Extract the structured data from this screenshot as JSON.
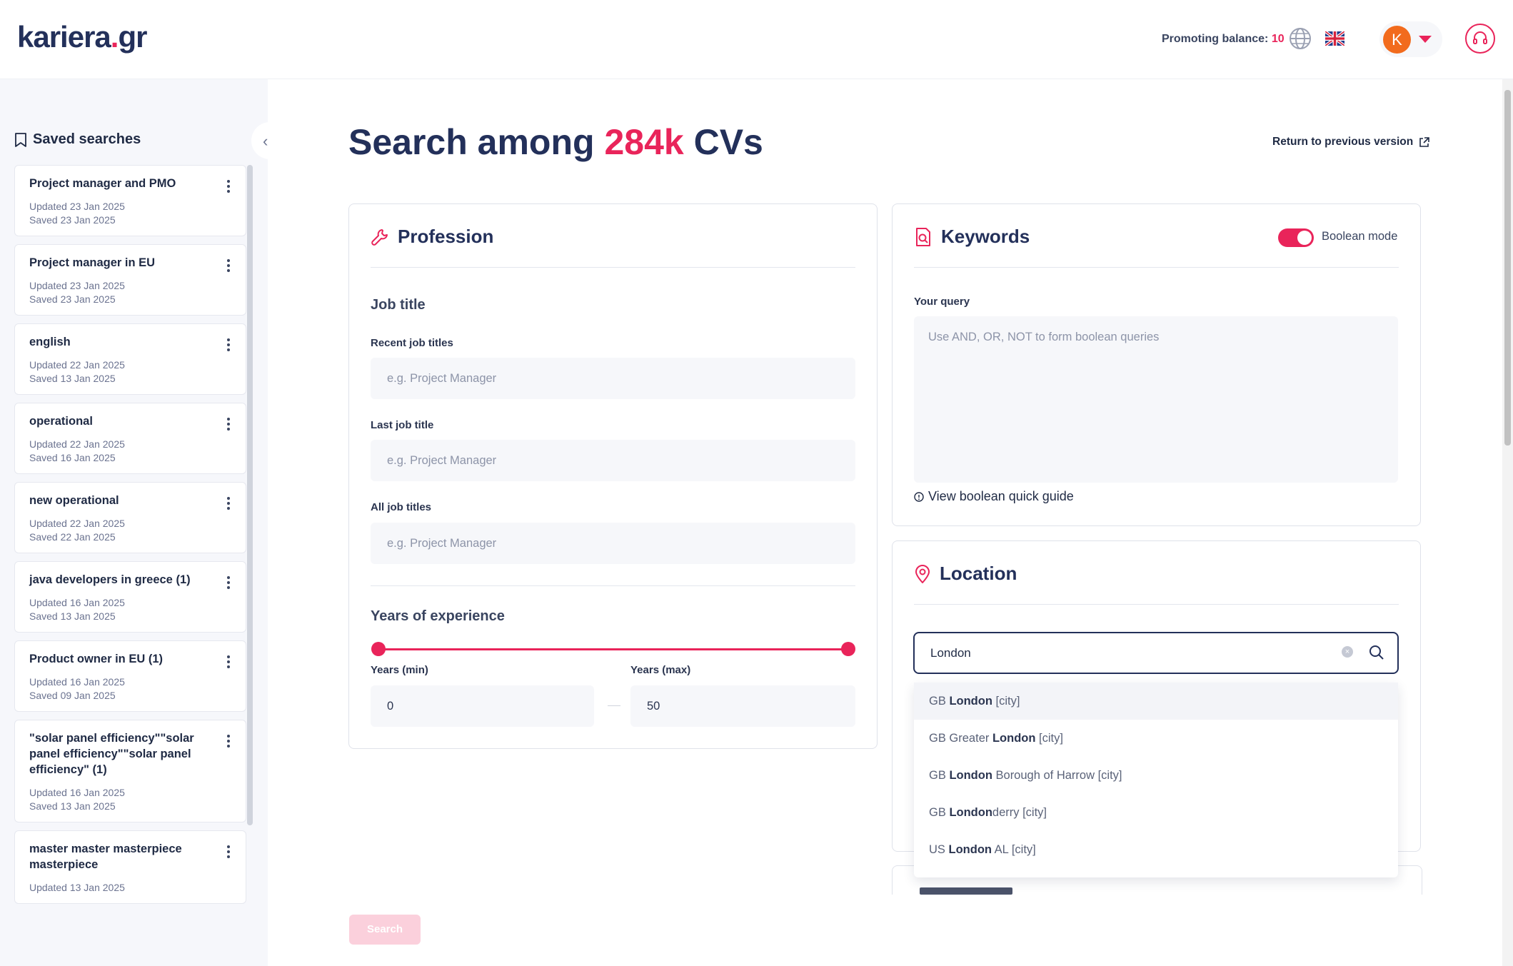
{
  "header": {
    "logo_main": "kariera",
    "logo_dot": ".",
    "logo_tld": "gr",
    "promoting_label": "Promoting balance:",
    "promoting_value": "10",
    "avatar_initial": "K"
  },
  "sidebar": {
    "title": "Saved searches",
    "items": [
      {
        "title": "Project manager and PMO",
        "updated": "Updated 23 Jan 2025",
        "saved": "Saved 23 Jan 2025"
      },
      {
        "title": "Project manager in EU",
        "updated": "Updated 23 Jan 2025",
        "saved": "Saved 23 Jan 2025"
      },
      {
        "title": "english",
        "updated": "Updated 22 Jan 2025",
        "saved": "Saved 13 Jan 2025"
      },
      {
        "title": "operational",
        "updated": "Updated 22 Jan 2025",
        "saved": "Saved 16 Jan 2025"
      },
      {
        "title": "new operational",
        "updated": "Updated 22 Jan 2025",
        "saved": "Saved 22 Jan 2025"
      },
      {
        "title": "java developers in greece (1)",
        "updated": "Updated 16 Jan 2025",
        "saved": "Saved 13 Jan 2025"
      },
      {
        "title": "Product owner in EU (1)",
        "updated": "Updated 16 Jan 2025",
        "saved": "Saved 09 Jan 2025"
      },
      {
        "title": "\"solar panel efficiency\"\"solar panel efficiency\"\"solar panel efficiency\" (1)",
        "updated": "Updated 16 Jan 2025",
        "saved": "Saved 13 Jan 2025"
      },
      {
        "title": "master master masterpiece masterpiece",
        "updated": "Updated 13 Jan 2025",
        "saved": ""
      }
    ]
  },
  "main": {
    "title_prefix": "Search among ",
    "title_highlight": "284k",
    "title_suffix": " CVs",
    "return_link": "Return to previous version",
    "search_button": "Search"
  },
  "profession": {
    "title": "Profession",
    "job_title_section": "Job title",
    "recent_label": "Recent job titles",
    "recent_placeholder": "e.g. Project Manager",
    "last_label": "Last job title",
    "last_placeholder": "e.g. Project Manager",
    "all_label": "All job titles",
    "all_placeholder": "e.g. Project Manager",
    "experience_section": "Years of experience",
    "years_min_label": "Years (min)",
    "years_min_value": "0",
    "years_max_label": "Years (max)",
    "years_max_value": "50"
  },
  "keywords": {
    "title": "Keywords",
    "boolean_mode_label": "Boolean mode",
    "boolean_mode_on": true,
    "query_label": "Your query",
    "query_placeholder": "Use AND, OR, NOT to form boolean queries",
    "guide_link": "View boolean quick guide"
  },
  "location": {
    "title": "Location",
    "input_value": "London",
    "suggestions": [
      {
        "prefix": "GB ",
        "match": "London",
        "suffix": " [city]"
      },
      {
        "prefix": "GB Greater ",
        "match": "London",
        "suffix": " [city]"
      },
      {
        "prefix": "GB ",
        "match": "London",
        "suffix": " Borough of Harrow [city]"
      },
      {
        "prefix": "GB ",
        "match": "London",
        "suffix": "derry [city]"
      },
      {
        "prefix": "US ",
        "match": "London",
        "suffix": " AL [city]"
      }
    ]
  },
  "colors": {
    "accent": "#e9245a",
    "navy": "#23305a",
    "avatar": "#f26b1d"
  }
}
